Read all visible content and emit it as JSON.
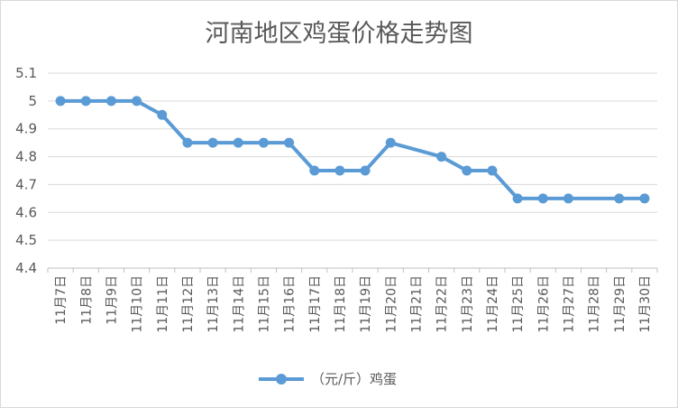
{
  "chart_data": {
    "type": "line",
    "title": "河南地区鸡蛋价格走势图",
    "categories": [
      "11月7日",
      "11月8日",
      "11月9日",
      "11月10日",
      "11月11日",
      "11月12日",
      "11月13日",
      "11月14日",
      "11月15日",
      "11月16日",
      "11月17日",
      "11月18日",
      "11月19日",
      "11月20日",
      "11月21日",
      "11月22日",
      "11月23日",
      "11月24日",
      "11月25日",
      "11月26日",
      "11月27日",
      "11月28日",
      "11月29日",
      "11月30日"
    ],
    "series": [
      {
        "name": "（元/斤）鸡蛋",
        "color": "#5b9bd5",
        "values": [
          5,
          5,
          5,
          5,
          4.95,
          4.85,
          4.85,
          4.85,
          4.85,
          4.85,
          4.75,
          4.75,
          4.75,
          4.85,
          null,
          4.8,
          4.75,
          4.75,
          4.65,
          4.65,
          4.65,
          null,
          4.65,
          4.65
        ]
      }
    ],
    "yticks": [
      "4.4",
      "4.5",
      "4.6",
      "4.7",
      "4.8",
      "4.9",
      "5",
      "5.1"
    ],
    "ylim": [
      4.4,
      5.1
    ],
    "grid": true,
    "legend": "bottom"
  }
}
